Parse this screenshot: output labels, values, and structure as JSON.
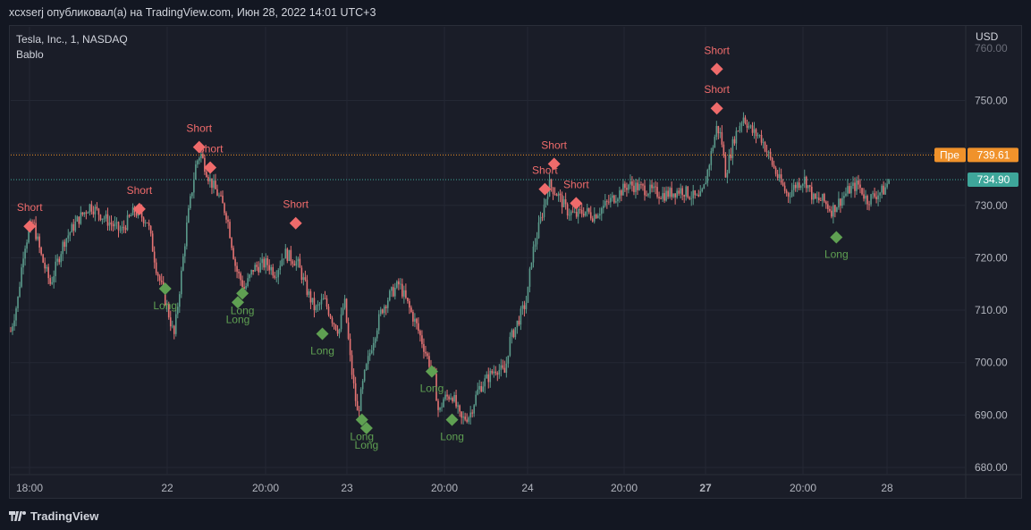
{
  "header": {
    "publish_line": "xcxserj опубликовал(а) на TradingView.com, Июн 28, 2022 14:01 UTC+3"
  },
  "legend": {
    "symbol": "Tesla, Inc., 1, NASDAQ",
    "indicator": "Bablo"
  },
  "currency": "USD",
  "footer": {
    "brand": "TradingView"
  },
  "colors": {
    "background": "#131722",
    "up": "#5b9a8b",
    "down": "#e57373",
    "short_marker": "#ef6b6b",
    "long_marker": "#5fa052",
    "prev_close_line": "#f0922b",
    "last_price_line": "#3ea69a"
  },
  "chart_data": {
    "type": "candlestick",
    "symbol": "Tesla, Inc., 1, NASDAQ",
    "indicator": "Bablo",
    "ylim": [
      678,
      762
    ],
    "y_ticks": [
      "680.00",
      "690.00",
      "700.00",
      "710.00",
      "720.00",
      "730.00",
      "740.00",
      "750.00",
      "760.00"
    ],
    "x_ticks": [
      {
        "label": "18:00",
        "bold": false
      },
      {
        "label": "22",
        "bold": false
      },
      {
        "label": "20:00",
        "bold": false
      },
      {
        "label": "23",
        "bold": false
      },
      {
        "label": "20:00",
        "bold": false
      },
      {
        "label": "24",
        "bold": false
      },
      {
        "label": "20:00",
        "bold": false
      },
      {
        "label": "27",
        "bold": true
      },
      {
        "label": "20:00",
        "bold": false
      },
      {
        "label": "28",
        "bold": false
      }
    ],
    "price_path": [
      [
        0.0,
        706
      ],
      [
        0.008,
        712
      ],
      [
        0.015,
        722
      ],
      [
        0.025,
        727
      ],
      [
        0.035,
        720
      ],
      [
        0.045,
        715
      ],
      [
        0.06,
        723
      ],
      [
        0.075,
        727
      ],
      [
        0.09,
        730
      ],
      [
        0.11,
        727
      ],
      [
        0.125,
        725
      ],
      [
        0.14,
        729
      ],
      [
        0.155,
        727
      ],
      [
        0.165,
        718
      ],
      [
        0.175,
        712
      ],
      [
        0.185,
        705
      ],
      [
        0.192,
        715
      ],
      [
        0.2,
        727
      ],
      [
        0.21,
        738
      ],
      [
        0.215,
        740
      ],
      [
        0.225,
        735
      ],
      [
        0.235,
        732
      ],
      [
        0.245,
        728
      ],
      [
        0.255,
        718
      ],
      [
        0.265,
        714
      ],
      [
        0.275,
        718
      ],
      [
        0.29,
        719
      ],
      [
        0.3,
        717
      ],
      [
        0.31,
        721
      ],
      [
        0.325,
        719
      ],
      [
        0.335,
        714
      ],
      [
        0.345,
        710
      ],
      [
        0.355,
        712
      ],
      [
        0.365,
        708
      ],
      [
        0.372,
        706
      ],
      [
        0.378,
        712
      ],
      [
        0.385,
        700
      ],
      [
        0.393,
        690
      ],
      [
        0.4,
        697
      ],
      [
        0.41,
        704
      ],
      [
        0.42,
        710
      ],
      [
        0.43,
        713
      ],
      [
        0.44,
        715
      ],
      [
        0.45,
        711
      ],
      [
        0.46,
        707
      ],
      [
        0.47,
        702
      ],
      [
        0.48,
        697
      ],
      [
        0.485,
        690
      ],
      [
        0.49,
        693
      ],
      [
        0.5,
        694
      ],
      [
        0.51,
        689
      ],
      [
        0.52,
        690
      ],
      [
        0.53,
        695
      ],
      [
        0.54,
        697
      ],
      [
        0.55,
        699
      ],
      [
        0.56,
        698
      ],
      [
        0.565,
        704
      ],
      [
        0.575,
        708
      ],
      [
        0.585,
        712
      ],
      [
        0.59,
        720
      ],
      [
        0.6,
        727
      ],
      [
        0.61,
        734
      ],
      [
        0.62,
        732
      ],
      [
        0.63,
        729
      ],
      [
        0.64,
        728
      ],
      [
        0.65,
        729
      ],
      [
        0.66,
        728
      ],
      [
        0.68,
        731
      ],
      [
        0.7,
        734
      ],
      [
        0.72,
        733
      ],
      [
        0.74,
        732
      ],
      [
        0.76,
        733
      ],
      [
        0.78,
        731
      ],
      [
        0.785,
        733
      ],
      [
        0.79,
        737
      ],
      [
        0.8,
        745
      ],
      [
        0.805,
        743
      ],
      [
        0.81,
        736
      ],
      [
        0.82,
        743
      ],
      [
        0.83,
        747
      ],
      [
        0.84,
        744
      ],
      [
        0.85,
        743
      ],
      [
        0.86,
        739
      ],
      [
        0.87,
        735
      ],
      [
        0.88,
        732
      ],
      [
        0.89,
        734
      ],
      [
        0.9,
        735
      ],
      [
        0.91,
        731
      ],
      [
        0.92,
        731
      ],
      [
        0.93,
        729
      ],
      [
        0.94,
        731
      ],
      [
        0.95,
        733
      ],
      [
        0.96,
        734
      ],
      [
        0.97,
        731
      ],
      [
        0.98,
        732
      ],
      [
        0.99,
        733
      ],
      [
        0.995,
        734.9
      ]
    ],
    "previous_close": {
      "label": "Пре",
      "value": "739.61",
      "y": 739.61
    },
    "last_price": {
      "value": "734.90",
      "y": 734.9
    },
    "signals": [
      {
        "type": "Short",
        "x": 0.0215,
        "y": 726.0
      },
      {
        "type": "Short",
        "x": 0.1458,
        "y": 729.3
      },
      {
        "type": "Long",
        "x": 0.175,
        "y": 714.1
      },
      {
        "type": "Short",
        "x": 0.2135,
        "y": 741.1
      },
      {
        "type": "Short",
        "x": 0.226,
        "y": 737.2
      },
      {
        "type": "Long",
        "x": 0.2625,
        "y": 713.2
      },
      {
        "type": "Long",
        "x": 0.2573,
        "y": 711.5
      },
      {
        "type": "Short",
        "x": 0.3229,
        "y": 726.6
      },
      {
        "type": "Long",
        "x": 0.3531,
        "y": 705.5
      },
      {
        "type": "Long",
        "x": 0.3979,
        "y": 689.1
      },
      {
        "type": "Long",
        "x": 0.4031,
        "y": 687.5
      },
      {
        "type": "Long",
        "x": 0.4771,
        "y": 698.3
      },
      {
        "type": "Long",
        "x": 0.5,
        "y": 689.1
      },
      {
        "type": "Short",
        "x": 0.6052,
        "y": 733.1
      },
      {
        "type": "Short",
        "x": 0.6156,
        "y": 737.9
      },
      {
        "type": "Short",
        "x": 0.6406,
        "y": 730.4
      },
      {
        "type": "Short",
        "x": 0.8,
        "y": 756.0
      },
      {
        "type": "Short",
        "x": 0.8,
        "y": 748.5
      },
      {
        "type": "Long",
        "x": 0.9354,
        "y": 723.9
      }
    ]
  }
}
